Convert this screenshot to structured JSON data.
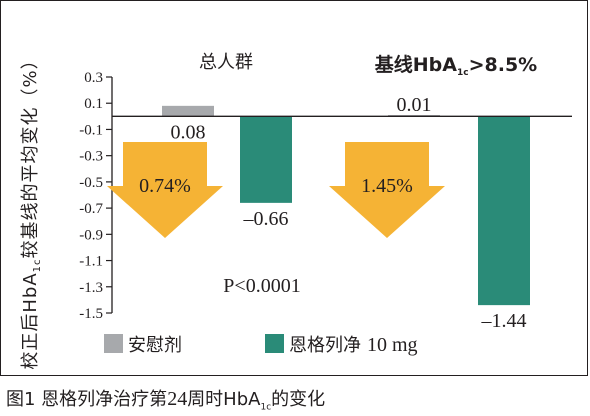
{
  "chart_data": {
    "type": "bar",
    "ylabel_parts": [
      "校正后HbA",
      "1c",
      "较基线的平均变化（%）"
    ],
    "ylim": [
      -1.5,
      0.3
    ],
    "yticks": [
      "0.3",
      "0.1",
      "-0.1",
      "-0.3",
      "-0.5",
      "-0.7",
      "-0.9",
      "-1.1",
      "-1.3",
      "-1.5"
    ],
    "grid": false,
    "groups": [
      {
        "title": "总人群",
        "title_parts": null,
        "bars": [
          {
            "series": "安慰剂",
            "value": 0.08,
            "label": "0.08"
          },
          {
            "series": "恩格列净 10 mg",
            "value": -0.66,
            "label": "–0.66"
          }
        ],
        "difference_label": "0.74%"
      },
      {
        "title": null,
        "title_parts": [
          "基线HbA",
          "1c",
          ">8.5%"
        ],
        "bars": [
          {
            "series": "安慰剂",
            "value": 0.01,
            "label": "0.01"
          },
          {
            "series": "恩格列净 10 mg",
            "value": -1.44,
            "label": "–1.44"
          }
        ],
        "difference_label": "1.45%"
      }
    ],
    "annotation": "P<0.0001",
    "legend": {
      "placement": "bottom",
      "items": [
        {
          "name": "安慰剂",
          "color": "#a7a9ac"
        },
        {
          "name": "恩格列净 10 mg",
          "name_cn": "恩格列净",
          "name_dose": "10 mg",
          "color": "#2a8b78"
        }
      ]
    },
    "colors": {
      "placebo": "#a7a9ac",
      "drug": "#2a8b78",
      "arrow": "#f5b335",
      "axis": "#231f20"
    }
  },
  "caption": {
    "prefix": "图1  恩格列净治疗第",
    "num": "24",
    "mid": "周时HbA",
    "sub": "1c",
    "suffix": "的变化"
  }
}
